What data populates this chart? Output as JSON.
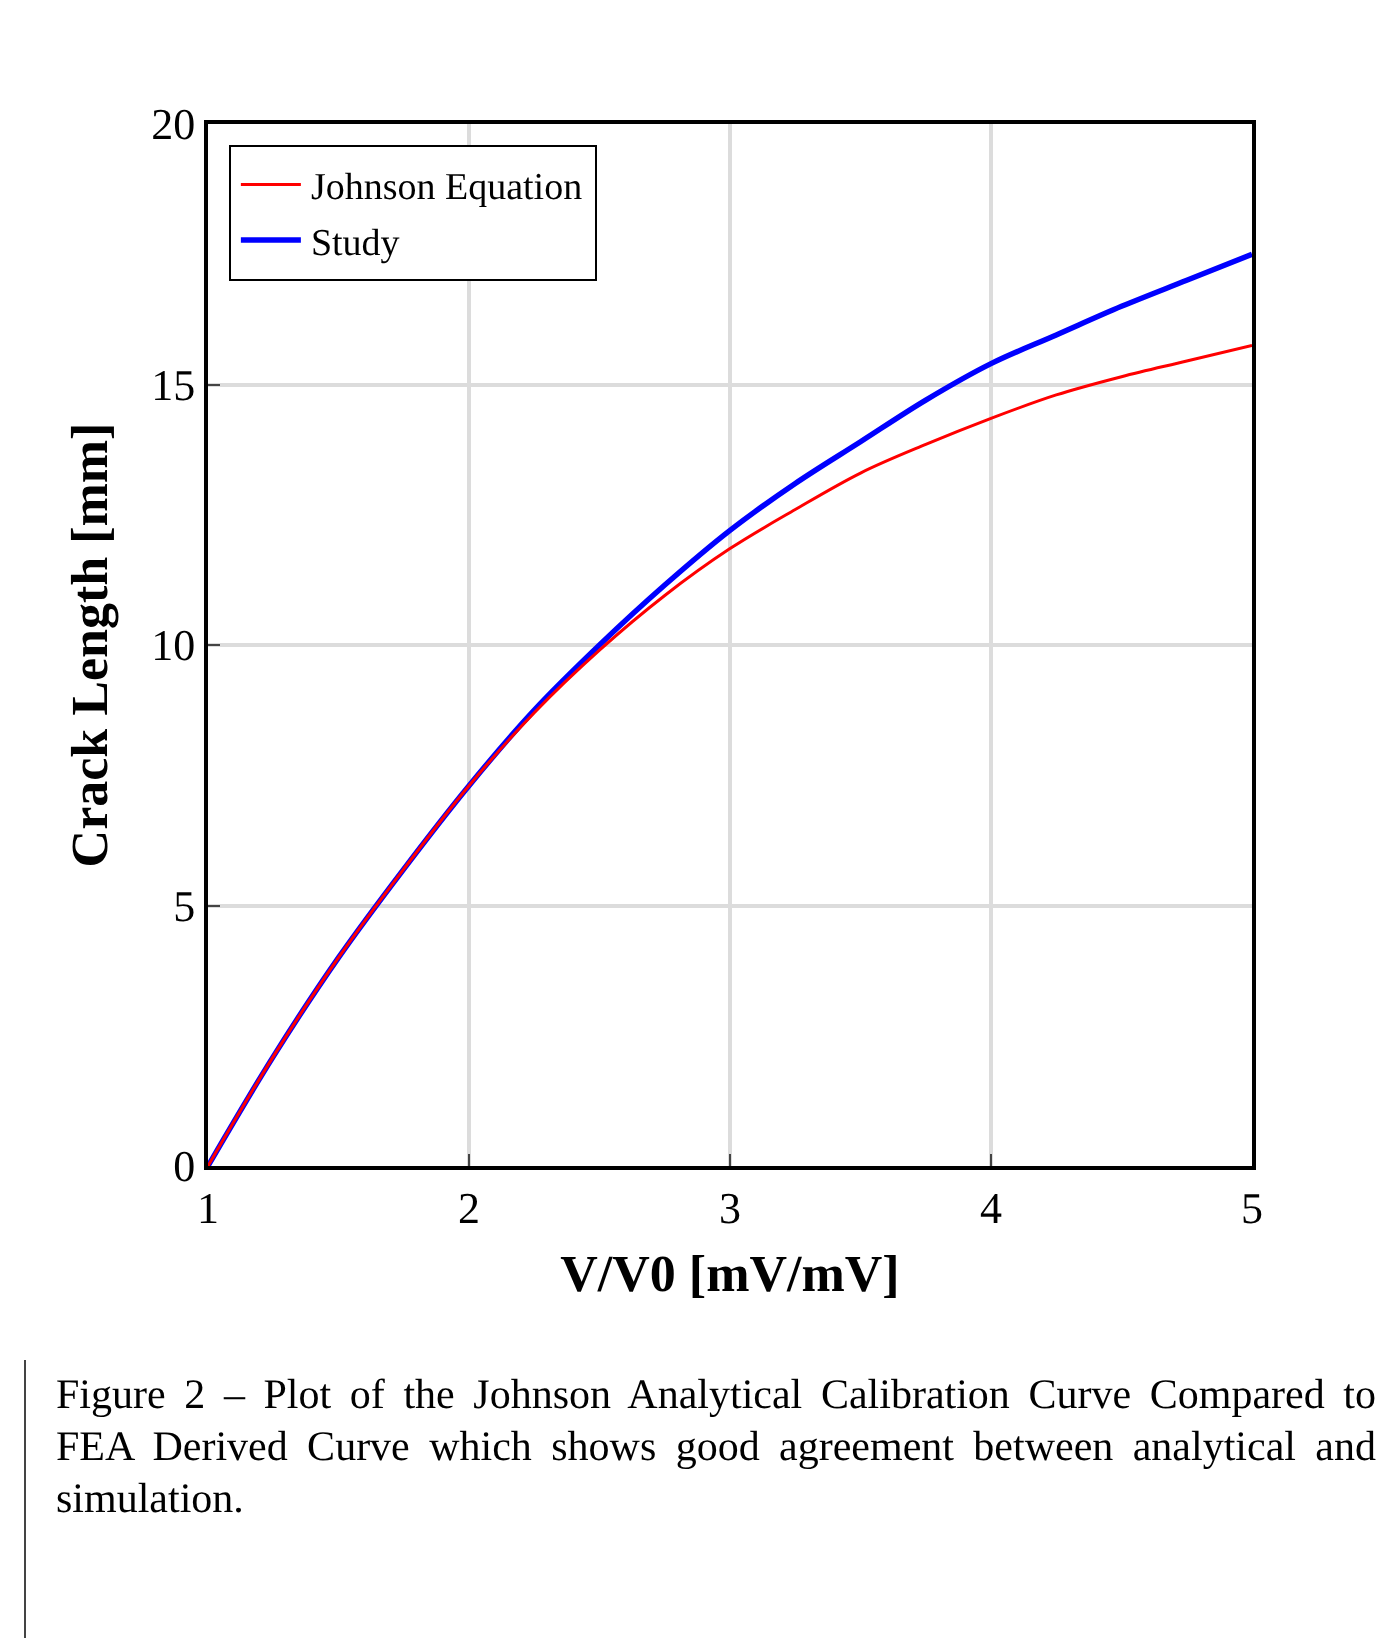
{
  "chart_data": {
    "type": "line",
    "xlabel": "V/V0 [mV/mV]",
    "ylabel": "Crack Length [mm]",
    "x": [
      1,
      1.25,
      1.5,
      1.75,
      2,
      2.25,
      2.5,
      2.75,
      3,
      3.25,
      3.5,
      3.75,
      4,
      4.25,
      4.5,
      4.75,
      5
    ],
    "series": [
      {
        "name": "Johnson Equation",
        "color": "#ff0000",
        "values": [
          0,
          2.1,
          4.0,
          5.7,
          7.3,
          8.7,
          9.9,
          10.95,
          11.85,
          12.6,
          13.3,
          13.85,
          14.35,
          14.8,
          15.15,
          15.45,
          15.75
        ]
      },
      {
        "name": "Study",
        "color": "#0000ff",
        "values": [
          0,
          2.1,
          4.0,
          5.7,
          7.3,
          8.75,
          10.0,
          11.15,
          12.2,
          13.1,
          13.9,
          14.7,
          15.4,
          15.95,
          16.5,
          17.0,
          17.5
        ]
      }
    ],
    "xlim": [
      1,
      5
    ],
    "xticks": [
      1,
      2,
      3,
      4,
      5
    ],
    "ylim": [
      0,
      20
    ],
    "yticks": [
      0,
      5,
      10,
      15,
      20
    ],
    "grid": true,
    "legend": "top left",
    "line_style": "solid",
    "marker": "none",
    "annotations": [
      "Figure 2 – Plot of the Johnson Analytical Calibration Curve Compared to FEA Derived Curve which shows good agreement between analytical and simulation."
    ]
  }
}
